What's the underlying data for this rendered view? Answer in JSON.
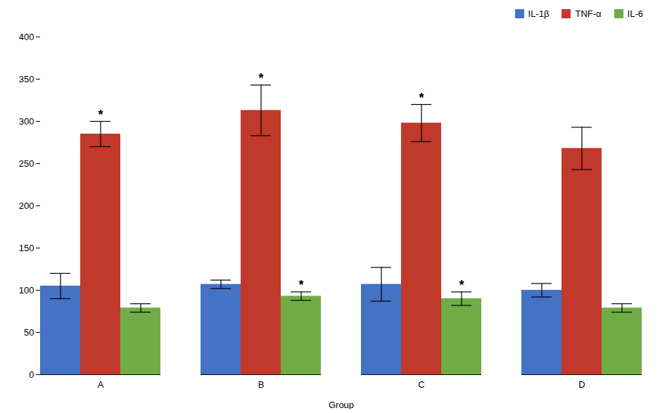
{
  "chart_data": {
    "type": "bar",
    "xlabel": "Group",
    "categories": [
      "A",
      "B",
      "C",
      "D"
    ],
    "series": [
      {
        "name": "IL-1β",
        "color": "#4472C4",
        "values": [
          105,
          107,
          107,
          100
        ],
        "errors": [
          15,
          5,
          20,
          8
        ]
      },
      {
        "name": "TNF-α",
        "color": "#C0392B",
        "values": [
          285,
          313,
          298,
          268
        ],
        "errors": [
          15,
          30,
          22,
          25
        ]
      },
      {
        "name": "IL-6",
        "color": "#70AD47",
        "values": [
          79,
          93,
          90,
          79
        ],
        "errors": [
          5,
          5,
          8,
          5
        ]
      }
    ],
    "annotations": [
      {
        "series": "TNF-α",
        "category": "A",
        "text": "*"
      },
      {
        "series": "TNF-α",
        "category": "B",
        "text": "*"
      },
      {
        "series": "TNF-α",
        "category": "C",
        "text": "*"
      },
      {
        "series": "IL-6",
        "category": "B",
        "text": "*"
      },
      {
        "series": "IL-6",
        "category": "C",
        "text": "*"
      }
    ],
    "ylim": [
      0,
      400
    ],
    "yticks": [
      0,
      50,
      100,
      150,
      200,
      250,
      300,
      350,
      400
    ],
    "grid": false,
    "legend": "upper right"
  }
}
